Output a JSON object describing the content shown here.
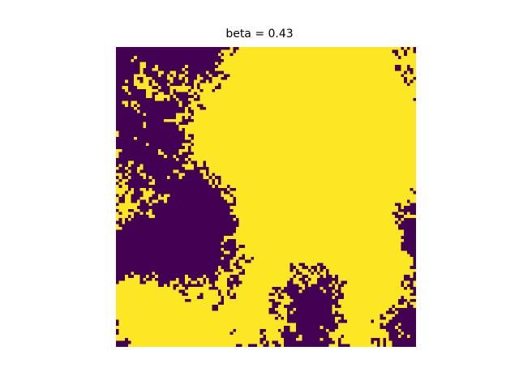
{
  "chart_data": {
    "type": "heatmap",
    "title": "beta = 0.43",
    "xlabel": "",
    "ylabel": "",
    "axes_visible": false,
    "grid": false,
    "colormap": "viridis",
    "colors": {
      "low": "#440154",
      "high": "#fde725"
    },
    "values": [
      0,
      1
    ],
    "rows": 100,
    "cols": 100
  }
}
